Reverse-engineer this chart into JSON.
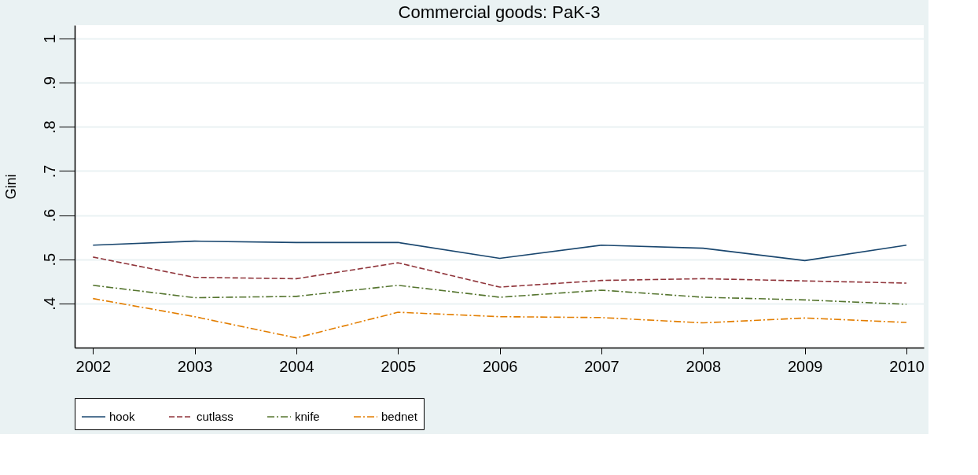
{
  "chart_data": {
    "type": "line",
    "title": "Commercial goods: PaK-3",
    "ylabel": "Gini",
    "x": [
      2002,
      2003,
      2004,
      2005,
      2006,
      2007,
      2008,
      2009,
      2010
    ],
    "xlim": [
      2001.82,
      2010.17
    ],
    "xticks": [
      2002,
      2003,
      2004,
      2005,
      2006,
      2007,
      2008,
      2009,
      2010
    ],
    "ylim": [
      0.3,
      1.03
    ],
    "yticks": [
      {
        "value": 0.4,
        "label": ".4"
      },
      {
        "value": 0.5,
        "label": ".5"
      },
      {
        "value": 0.6,
        "label": ".6"
      },
      {
        "value": 0.7,
        "label": ".7"
      },
      {
        "value": 0.8,
        "label": ".8"
      },
      {
        "value": 0.9,
        "label": ".9"
      },
      {
        "value": 1,
        "label": "1"
      }
    ],
    "grid": "y",
    "legend": "bottom",
    "marker": "none",
    "series": [
      {
        "name": "hook",
        "color": "#1a476f",
        "line_style": "solid",
        "values": [
          0.532,
          0.541,
          0.538,
          0.538,
          0.502,
          0.532,
          0.525,
          0.497,
          0.532
        ]
      },
      {
        "name": "cutlass",
        "color": "#90353b",
        "line_style": "dashed",
        "values": [
          0.505,
          0.459,
          0.456,
          0.492,
          0.437,
          0.452,
          0.456,
          0.451,
          0.446
        ]
      },
      {
        "name": "knife",
        "color": "#55752f",
        "line_style": "dashdot",
        "values": [
          0.441,
          0.413,
          0.416,
          0.441,
          0.414,
          0.43,
          0.414,
          0.408,
          0.398
        ]
      },
      {
        "name": "bednet",
        "color": "#e37e00",
        "line_style": "dashdot",
        "values": [
          0.411,
          0.37,
          0.322,
          0.38,
          0.37,
          0.368,
          0.356,
          0.367,
          0.357
        ]
      }
    ]
  }
}
